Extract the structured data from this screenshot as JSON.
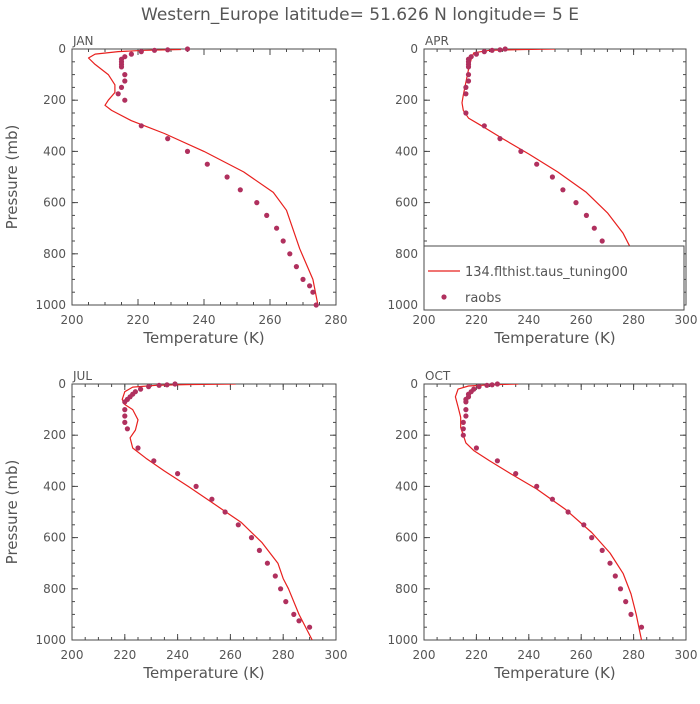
{
  "title": "Western_Europe  latitude= 51.626 N longitude= 5 E",
  "colors": {
    "model": "#e8201e",
    "obs": "#b0305e",
    "axis": "#4a4a4a",
    "text": "#555555"
  },
  "legend": {
    "model_label": "134.flthist.taus_tuning00",
    "obs_label": "raobs",
    "placement": "lower-right of APR panel"
  },
  "chart_data": [
    {
      "type": "line",
      "panel_label": "JAN",
      "xlabel": "Temperature (K)",
      "ylabel": "Pressure (mb)",
      "xlim": [
        200,
        280
      ],
      "ylim": [
        1000,
        0
      ],
      "xticks": [
        200,
        220,
        240,
        260,
        280
      ],
      "yticks": [
        0,
        200,
        400,
        600,
        800,
        1000
      ],
      "series": [
        {
          "role": "model",
          "x": [
            233,
            222,
            214,
            207,
            205,
            207,
            211,
            213,
            213,
            211,
            210,
            212,
            218,
            228,
            240,
            252,
            261,
            265,
            269,
            273,
            274.5
          ],
          "y": [
            2,
            5,
            10,
            20,
            35,
            60,
            100,
            140,
            170,
            200,
            220,
            240,
            280,
            330,
            400,
            480,
            560,
            630,
            780,
            900,
            1000
          ]
        },
        {
          "role": "obs",
          "x": [
            235,
            229,
            225,
            221,
            218,
            216,
            215,
            215,
            215,
            215,
            216,
            216,
            215,
            214,
            216,
            221,
            229,
            235,
            241,
            247,
            251,
            256,
            259,
            262,
            264,
            266,
            268,
            270,
            272,
            273,
            274
          ],
          "y": [
            0,
            3,
            5,
            10,
            20,
            30,
            40,
            50,
            60,
            70,
            100,
            125,
            150,
            175,
            200,
            300,
            350,
            400,
            450,
            500,
            550,
            600,
            650,
            700,
            750,
            800,
            850,
            900,
            925,
            950,
            1000
          ]
        }
      ]
    },
    {
      "type": "line",
      "panel_label": "APR",
      "xlabel": "Temperature (K)",
      "ylabel": "",
      "xlim": [
        200,
        300
      ],
      "ylim": [
        1000,
        0
      ],
      "xticks": [
        200,
        220,
        240,
        260,
        280,
        300
      ],
      "yticks": [
        0,
        200,
        400,
        600,
        800,
        1000
      ],
      "series": [
        {
          "role": "model",
          "x": [
            250,
            238,
            225,
            219,
            218,
            217,
            216,
            215,
            214.5,
            215,
            217,
            222,
            230,
            240,
            251,
            262,
            270,
            276,
            280,
            282,
            283
          ],
          "y": [
            0,
            2,
            5,
            15,
            40,
            80,
            130,
            180,
            210,
            240,
            270,
            300,
            350,
            410,
            480,
            560,
            640,
            720,
            800,
            900,
            1000
          ]
        },
        {
          "role": "obs",
          "x": [
            231,
            229,
            226,
            223,
            220,
            218,
            217,
            217,
            217,
            217,
            217,
            217,
            216,
            216,
            216,
            223,
            229,
            237,
            243,
            249,
            253,
            258,
            262,
            265,
            268,
            270,
            272,
            275,
            276,
            279,
            283
          ],
          "y": [
            0,
            3,
            5,
            10,
            20,
            30,
            40,
            50,
            60,
            70,
            100,
            125,
            150,
            175,
            250,
            300,
            350,
            400,
            450,
            500,
            550,
            600,
            650,
            700,
            750,
            800,
            850,
            875,
            900,
            950,
            1000
          ]
        }
      ]
    },
    {
      "type": "line",
      "panel_label": "JUL",
      "xlabel": "Temperature (K)",
      "ylabel": "Pressure (mb)",
      "xlim": [
        200,
        300
      ],
      "ylim": [
        1000,
        0
      ],
      "xticks": [
        200,
        220,
        240,
        260,
        280,
        300
      ],
      "yticks": [
        0,
        200,
        400,
        600,
        800,
        1000
      ],
      "series": [
        {
          "role": "model",
          "x": [
            262,
            245,
            232,
            223,
            220,
            219,
            220,
            223,
            225,
            224,
            222,
            223,
            228,
            235,
            244,
            254,
            264,
            272,
            278,
            280,
            282,
            286,
            291
          ],
          "y": [
            0,
            2,
            5,
            12,
            30,
            60,
            80,
            100,
            140,
            180,
            210,
            250,
            290,
            340,
            400,
            470,
            540,
            620,
            700,
            760,
            800,
            900,
            1000
          ]
        },
        {
          "role": "obs",
          "x": [
            239,
            236,
            233,
            229,
            226,
            224,
            223,
            222,
            221,
            220,
            220,
            220,
            220,
            221,
            225,
            231,
            240,
            247,
            253,
            258,
            263,
            268,
            271,
            274,
            277,
            279,
            281,
            284,
            286,
            290
          ],
          "y": [
            0,
            3,
            5,
            10,
            20,
            30,
            40,
            50,
            60,
            70,
            100,
            125,
            150,
            175,
            250,
            300,
            350,
            400,
            450,
            500,
            550,
            600,
            650,
            700,
            750,
            800,
            850,
            900,
            925,
            950
          ]
        }
      ]
    },
    {
      "type": "line",
      "panel_label": "OCT",
      "xlabel": "Temperature (K)",
      "ylabel": "",
      "xlim": [
        200,
        300
      ],
      "ylim": [
        1000,
        0
      ],
      "xticks": [
        200,
        220,
        240,
        260,
        280,
        300
      ],
      "yticks": [
        0,
        200,
        400,
        600,
        800,
        1000
      ],
      "series": [
        {
          "role": "model",
          "x": [
            236,
            225,
            217,
            213,
            212,
            213,
            214,
            214,
            215,
            216,
            219,
            225,
            233,
            243,
            254,
            264,
            271,
            276,
            279,
            281,
            283
          ],
          "y": [
            0,
            3,
            8,
            20,
            50,
            90,
            130,
            170,
            200,
            230,
            260,
            300,
            350,
            410,
            490,
            580,
            660,
            740,
            820,
            900,
            1000
          ]
        },
        {
          "role": "obs",
          "x": [
            228,
            226,
            224,
            221,
            219,
            218,
            217,
            217,
            216,
            216,
            216,
            216,
            215,
            215,
            215,
            220,
            228,
            235,
            243,
            249,
            255,
            261,
            264,
            268,
            271,
            273,
            275,
            277,
            279,
            283
          ],
          "y": [
            0,
            3,
            5,
            10,
            20,
            30,
            40,
            50,
            60,
            70,
            100,
            125,
            150,
            175,
            200,
            250,
            300,
            350,
            400,
            450,
            500,
            550,
            600,
            650,
            700,
            750,
            800,
            850,
            900,
            950
          ]
        }
      ]
    }
  ]
}
